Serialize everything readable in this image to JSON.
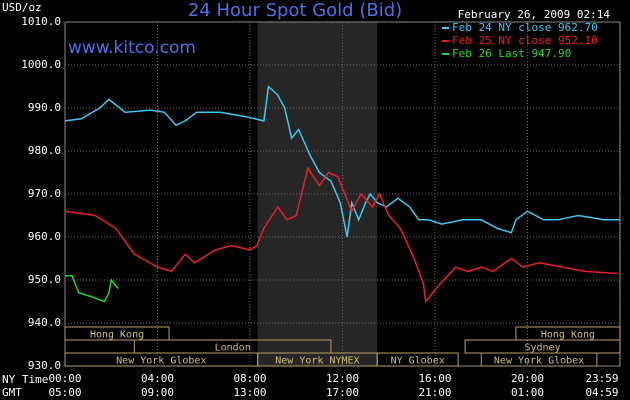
{
  "chart_data": {
    "type": "line",
    "title": "24 Hour Spot Gold (Bid)",
    "unit_label": "USD/oz",
    "website": "www.kitco.com",
    "timestamp": "February 26, 2009 02:14",
    "x_axis_label": "NY Time",
    "x2_axis_label": "GMT",
    "xlim": [
      0,
      24
    ],
    "ylim": [
      930,
      1010
    ],
    "yticks": [
      {
        "value": 930,
        "label": "930.0"
      },
      {
        "value": 940,
        "label": "940.0"
      },
      {
        "value": 950,
        "label": "950.0"
      },
      {
        "value": 960,
        "label": "960.0"
      },
      {
        "value": 970,
        "label": "970.0"
      },
      {
        "value": 980,
        "label": "980.0"
      },
      {
        "value": 990,
        "label": "990.0"
      },
      {
        "value": 1000,
        "label": "1000.0"
      },
      {
        "value": 1010,
        "label": "1010.0"
      }
    ],
    "xticks": [
      {
        "value": 0,
        "label": "00:00"
      },
      {
        "value": 4,
        "label": "04:00"
      },
      {
        "value": 8,
        "label": "08:00"
      },
      {
        "value": 12,
        "label": "12:00"
      },
      {
        "value": 16,
        "label": "16:00"
      },
      {
        "value": 20,
        "label": "20:00"
      },
      {
        "value": 23.98,
        "label": "23:59"
      }
    ],
    "x2ticks": [
      {
        "value": 0,
        "label": "05:00"
      },
      {
        "value": 4,
        "label": "09:00"
      },
      {
        "value": 8,
        "label": "13:00"
      },
      {
        "value": 12,
        "label": "17:00"
      },
      {
        "value": 16,
        "label": "21:00"
      },
      {
        "value": 20,
        "label": "01:00"
      },
      {
        "value": 23.98,
        "label": "04:59"
      }
    ],
    "grid": true,
    "shade": [
      8.33,
      13.5
    ],
    "sessions": [
      [
        {
          "name": "Hong Kong",
          "start": 0,
          "end": 4.5
        },
        {
          "name": "Hong Kong",
          "start": 19.5,
          "end": 24
        }
      ],
      [
        {
          "name": "London",
          "start": 3,
          "end": 11.5
        },
        {
          "name": "Sydney",
          "start": 17.3,
          "end": 24
        }
      ],
      [
        {
          "name": "New York Globex",
          "start": 0,
          "end": 8.33
        },
        {
          "name": "New York NYMEX",
          "start": 8.33,
          "end": 13.5
        },
        {
          "name": "NY Globex",
          "start": 13.5,
          "end": 17
        },
        {
          "name": "New York Globex",
          "start": 18,
          "end": 23
        }
      ]
    ],
    "series": [
      {
        "name": "Feb 24 NY close 962.70",
        "color": "#3cc8f0",
        "x": [
          0,
          0.7,
          1.5,
          1.9,
          2.6,
          3.7,
          4.3,
          4.8,
          5.2,
          5.7,
          6.7,
          7.8,
          8.6,
          8.8,
          9.2,
          9.5,
          9.8,
          10.1,
          10.6,
          11,
          11.5,
          11.9,
          12.2,
          12.4,
          12.7,
          13,
          13.2,
          13.5,
          13.9,
          14.4,
          14.9,
          15.3,
          15.7,
          16.3,
          17.2,
          18,
          18.7,
          19.3,
          19.5,
          20,
          20.7,
          21.3,
          22.2,
          23.3,
          24
        ],
        "values": [
          987,
          987.5,
          990,
          992,
          989,
          989.5,
          989,
          986,
          987,
          989,
          989,
          988,
          987,
          995,
          993,
          990,
          983,
          985,
          979,
          975,
          973,
          968,
          960,
          968,
          964,
          968,
          970,
          968,
          967,
          969,
          967,
          964,
          964,
          963,
          964,
          964,
          962,
          961,
          964,
          966,
          964,
          964,
          965,
          964,
          964
        ]
      },
      {
        "name": "Feb 25 NY close 952.10",
        "color": "#e8202a",
        "x": [
          0,
          1.3,
          2.2,
          3,
          4,
          4.6,
          5.2,
          5.6,
          6.5,
          7.2,
          8,
          8.3,
          8.6,
          9.2,
          9.6,
          10,
          10.5,
          11,
          11.4,
          11.8,
          12.4,
          12.8,
          13.3,
          13.6,
          14,
          14.5,
          15.1,
          15.5,
          15.6,
          16.2,
          16.9,
          17.4,
          18,
          18.5,
          19.3,
          19.8,
          20.5,
          21.5,
          22.5,
          23.9
        ],
        "values": [
          966,
          965,
          962,
          956,
          953,
          952,
          956,
          954,
          957,
          958,
          957,
          958,
          962,
          967,
          964,
          965,
          976,
          972,
          975,
          974,
          966,
          970,
          967,
          970,
          965,
          962,
          955,
          949,
          945,
          949,
          953,
          952,
          953,
          952,
          955,
          953,
          954,
          953,
          952,
          951.5
        ]
      },
      {
        "name": "Feb 26 Last 947.90",
        "color": "#22d822",
        "x": [
          0,
          0.3,
          0.6,
          1.2,
          1.7,
          1.9,
          2,
          2.3
        ],
        "values": [
          951,
          951,
          947,
          946,
          945,
          947,
          950,
          948
        ]
      }
    ]
  }
}
